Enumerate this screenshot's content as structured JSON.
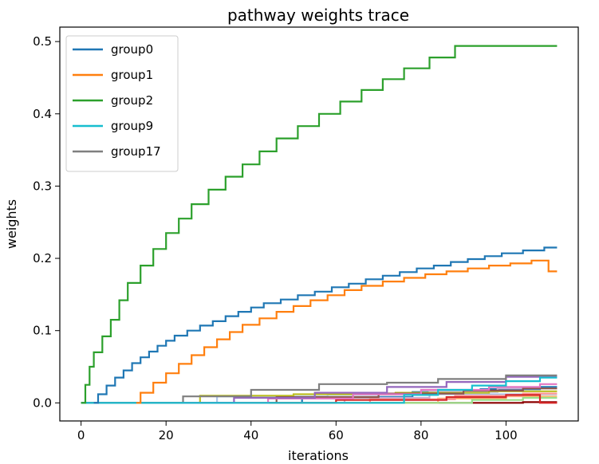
{
  "chart_data": {
    "type": "line",
    "title": "pathway weights trace",
    "xlabel": "iterations",
    "ylabel": "weights",
    "xlim": [
      -5,
      117
    ],
    "ylim": [
      -0.025,
      0.52
    ],
    "xticks": [
      0,
      20,
      40,
      60,
      80,
      100
    ],
    "yticks": [
      0.0,
      0.1,
      0.2,
      0.3,
      0.4,
      0.5
    ],
    "xtick_labels": [
      "0",
      "20",
      "40",
      "60",
      "80",
      "100"
    ],
    "ytick_labels": [
      "0.0",
      "0.1",
      "0.2",
      "0.3",
      "0.4",
      "0.5"
    ],
    "legend_position": "top-left",
    "series": [
      {
        "name": "group0",
        "color": "#1f77b4",
        "legend": true,
        "start": 3,
        "end": 112,
        "steps": [
          [
            3,
            0.0
          ],
          [
            4,
            0.012
          ],
          [
            6,
            0.024
          ],
          [
            8,
            0.035
          ],
          [
            10,
            0.045
          ],
          [
            12,
            0.055
          ],
          [
            14,
            0.063
          ],
          [
            16,
            0.071
          ],
          [
            18,
            0.079
          ],
          [
            20,
            0.086
          ],
          [
            22,
            0.093
          ],
          [
            25,
            0.1
          ],
          [
            28,
            0.107
          ],
          [
            31,
            0.113
          ],
          [
            34,
            0.12
          ],
          [
            37,
            0.126
          ],
          [
            40,
            0.132
          ],
          [
            43,
            0.138
          ],
          [
            47,
            0.143
          ],
          [
            51,
            0.149
          ],
          [
            55,
            0.154
          ],
          [
            59,
            0.16
          ],
          [
            63,
            0.165
          ],
          [
            67,
            0.171
          ],
          [
            71,
            0.176
          ],
          [
            75,
            0.181
          ],
          [
            79,
            0.186
          ],
          [
            83,
            0.19
          ],
          [
            87,
            0.195
          ],
          [
            91,
            0.199
          ],
          [
            95,
            0.203
          ],
          [
            99,
            0.207
          ],
          [
            104,
            0.211
          ],
          [
            109,
            0.215
          ]
        ]
      },
      {
        "name": "group1",
        "color": "#ff7f0e",
        "legend": true,
        "start": 13,
        "end": 112,
        "steps": [
          [
            13,
            0.0
          ],
          [
            14,
            0.014
          ],
          [
            17,
            0.028
          ],
          [
            20,
            0.041
          ],
          [
            23,
            0.054
          ],
          [
            26,
            0.066
          ],
          [
            29,
            0.077
          ],
          [
            32,
            0.088
          ],
          [
            35,
            0.098
          ],
          [
            38,
            0.108
          ],
          [
            42,
            0.117
          ],
          [
            46,
            0.126
          ],
          [
            50,
            0.134
          ],
          [
            54,
            0.142
          ],
          [
            58,
            0.149
          ],
          [
            62,
            0.156
          ],
          [
            66,
            0.162
          ],
          [
            71,
            0.168
          ],
          [
            76,
            0.173
          ],
          [
            81,
            0.178
          ],
          [
            86,
            0.182
          ],
          [
            91,
            0.186
          ],
          [
            96,
            0.19
          ],
          [
            101,
            0.193
          ],
          [
            106,
            0.197
          ],
          [
            110,
            0.182
          ]
        ]
      },
      {
        "name": "group2",
        "color": "#2ca02c",
        "legend": true,
        "start": 0,
        "end": 112,
        "steps": [
          [
            0,
            0.0
          ],
          [
            1,
            0.025
          ],
          [
            2,
            0.05
          ],
          [
            3,
            0.07
          ],
          [
            5,
            0.092
          ],
          [
            7,
            0.115
          ],
          [
            9,
            0.142
          ],
          [
            11,
            0.166
          ],
          [
            14,
            0.19
          ],
          [
            17,
            0.213
          ],
          [
            20,
            0.235
          ],
          [
            23,
            0.255
          ],
          [
            26,
            0.275
          ],
          [
            30,
            0.295
          ],
          [
            34,
            0.313
          ],
          [
            38,
            0.33
          ],
          [
            42,
            0.348
          ],
          [
            46,
            0.366
          ],
          [
            51,
            0.383
          ],
          [
            56,
            0.4
          ],
          [
            61,
            0.417
          ],
          [
            66,
            0.433
          ],
          [
            71,
            0.448
          ],
          [
            76,
            0.463
          ],
          [
            82,
            0.478
          ],
          [
            88,
            0.494
          ]
        ]
      },
      {
        "name": "group9",
        "color": "#17becf",
        "legend": true,
        "start": 0,
        "end": 112,
        "steps": [
          [
            0,
            0.0
          ],
          [
            76,
            0.011
          ],
          [
            84,
            0.018
          ],
          [
            92,
            0.024
          ],
          [
            100,
            0.03
          ],
          [
            108,
            0.035
          ]
        ]
      },
      {
        "name": "group17",
        "color": "#7f7f7f",
        "legend": true,
        "start": 0,
        "end": 112,
        "steps": [
          [
            0,
            0.0
          ],
          [
            24,
            0.009
          ],
          [
            40,
            0.018
          ],
          [
            56,
            0.026
          ],
          [
            72,
            0.028
          ],
          [
            84,
            0.033
          ],
          [
            100,
            0.038
          ]
        ]
      },
      {
        "name": "",
        "color": "#9467bd",
        "legend": false,
        "start": 0,
        "end": 112,
        "steps": [
          [
            0,
            0.0
          ],
          [
            36,
            0.007
          ],
          [
            55,
            0.014
          ],
          [
            72,
            0.022
          ],
          [
            86,
            0.029
          ],
          [
            100,
            0.036
          ]
        ]
      },
      {
        "name": "",
        "color": "#e377c2",
        "legend": false,
        "start": 0,
        "end": 112,
        "steps": [
          [
            0,
            0.0
          ],
          [
            44,
            0.006
          ],
          [
            64,
            0.012
          ],
          [
            80,
            0.018
          ],
          [
            96,
            0.022
          ],
          [
            108,
            0.026
          ]
        ]
      },
      {
        "name": "",
        "color": "#8c564b",
        "legend": false,
        "start": 0,
        "end": 112,
        "steps": [
          [
            0,
            0.0
          ],
          [
            46,
            0.008
          ],
          [
            70,
            0.013
          ],
          [
            90,
            0.017
          ],
          [
            104,
            0.02
          ]
        ]
      },
      {
        "name": "",
        "color": "#bcbd22",
        "legend": false,
        "start": 0,
        "end": 112,
        "steps": [
          [
            0,
            0.0
          ],
          [
            28,
            0.01
          ],
          [
            50,
            0.012
          ],
          [
            74,
            0.014
          ],
          [
            96,
            0.016
          ]
        ]
      },
      {
        "name": "",
        "color": "#d62728",
        "legend": false,
        "start": 0,
        "end": 112,
        "steps": [
          [
            0,
            0.0
          ],
          [
            60,
            0.004
          ],
          [
            86,
            0.008
          ],
          [
            100,
            0.011
          ],
          [
            108,
            0.0
          ]
        ]
      },
      {
        "name": "",
        "color": "#ff9896",
        "legend": false,
        "start": 0,
        "end": 112,
        "steps": [
          [
            0,
            0.0
          ],
          [
            68,
            0.005
          ],
          [
            88,
            0.01
          ],
          [
            104,
            0.013
          ]
        ]
      },
      {
        "name": "",
        "color": "#98df8a",
        "legend": false,
        "start": 0,
        "end": 112,
        "steps": [
          [
            0,
            0.0
          ],
          [
            92,
            0.004
          ],
          [
            104,
            0.007
          ]
        ]
      },
      {
        "name": "",
        "color": "#aec7e8",
        "legend": false,
        "start": 0,
        "end": 112,
        "steps": [
          [
            0,
            0.0
          ],
          [
            32,
            0.009
          ],
          [
            58,
            0.011
          ],
          [
            80,
            0.012
          ]
        ]
      },
      {
        "name": "",
        "color": "#ffbb78",
        "legend": false,
        "start": 0,
        "end": 112,
        "steps": [
          [
            0,
            0.0
          ],
          [
            84,
            0.006
          ],
          [
            100,
            0.009
          ]
        ]
      },
      {
        "name": "",
        "color": "#c5b0d5",
        "legend": false,
        "start": 0,
        "end": 112,
        "steps": [
          [
            0,
            0.0
          ],
          [
            62,
            0.007
          ],
          [
            82,
            0.015
          ],
          [
            98,
            0.02
          ]
        ]
      },
      {
        "name": "",
        "color": "#1f77b4",
        "legend": false,
        "start": 0,
        "end": 112,
        "steps": [
          [
            0,
            0.0
          ],
          [
            52,
            0.008
          ],
          [
            78,
            0.015
          ],
          [
            94,
            0.019
          ],
          [
            108,
            0.022
          ]
        ]
      },
      {
        "name": "",
        "color": "#8b0000",
        "legend": false,
        "start": 0,
        "end": 112,
        "steps": [
          [
            0,
            0.0
          ],
          [
            104,
            0.001
          ]
        ]
      }
    ]
  }
}
